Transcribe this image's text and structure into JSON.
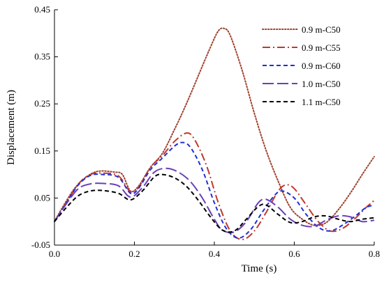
{
  "chart_data": {
    "type": "line",
    "xlabel": "Time (s)",
    "ylabel": "Displacement (m)",
    "xlim": [
      0,
      0.8
    ],
    "ylim": [
      -0.05,
      0.45
    ],
    "xticks": [
      "0.0",
      "0.2",
      "0.4",
      "0.6",
      "0.8"
    ],
    "yticks": [
      "-0.05",
      "0.05",
      "0.15",
      "0.25",
      "0.35",
      "0.45"
    ],
    "grid": false,
    "legend_position": "top-right",
    "series": [
      {
        "name": "0.9 m-C50",
        "color": "#a0412d",
        "dash": "dotted",
        "points": [
          [
            0,
            0
          ],
          [
            0.02,
            0.03
          ],
          [
            0.05,
            0.07
          ],
          [
            0.08,
            0.095
          ],
          [
            0.11,
            0.107
          ],
          [
            0.15,
            0.105
          ],
          [
            0.17,
            0.1
          ],
          [
            0.19,
            0.065
          ],
          [
            0.21,
            0.075
          ],
          [
            0.24,
            0.115
          ],
          [
            0.27,
            0.145
          ],
          [
            0.3,
            0.195
          ],
          [
            0.33,
            0.25
          ],
          [
            0.36,
            0.31
          ],
          [
            0.39,
            0.37
          ],
          [
            0.41,
            0.405
          ],
          [
            0.425,
            0.41
          ],
          [
            0.44,
            0.395
          ],
          [
            0.47,
            0.32
          ],
          [
            0.5,
            0.23
          ],
          [
            0.53,
            0.15
          ],
          [
            0.56,
            0.085
          ],
          [
            0.59,
            0.03
          ],
          [
            0.62,
            0.005
          ],
          [
            0.65,
            -0.008
          ],
          [
            0.68,
            -0.002
          ],
          [
            0.71,
            0.025
          ],
          [
            0.74,
            0.06
          ],
          [
            0.77,
            0.1
          ],
          [
            0.8,
            0.138
          ]
        ]
      },
      {
        "name": "0.9 m-C55",
        "color": "#c0392b",
        "dash": "dashdot",
        "points": [
          [
            0,
            0
          ],
          [
            0.03,
            0.04
          ],
          [
            0.06,
            0.08
          ],
          [
            0.09,
            0.1
          ],
          [
            0.12,
            0.103
          ],
          [
            0.16,
            0.097
          ],
          [
            0.19,
            0.063
          ],
          [
            0.21,
            0.072
          ],
          [
            0.24,
            0.115
          ],
          [
            0.27,
            0.14
          ],
          [
            0.3,
            0.17
          ],
          [
            0.33,
            0.188
          ],
          [
            0.35,
            0.175
          ],
          [
            0.38,
            0.12
          ],
          [
            0.41,
            0.04
          ],
          [
            0.44,
            -0.02
          ],
          [
            0.47,
            -0.038
          ],
          [
            0.5,
            -0.02
          ],
          [
            0.53,
            0.02
          ],
          [
            0.56,
            0.065
          ],
          [
            0.58,
            0.078
          ],
          [
            0.6,
            0.07
          ],
          [
            0.63,
            0.035
          ],
          [
            0.66,
            0.0
          ],
          [
            0.69,
            -0.02
          ],
          [
            0.72,
            -0.015
          ],
          [
            0.75,
            0.005
          ],
          [
            0.78,
            0.03
          ],
          [
            0.8,
            0.045
          ]
        ]
      },
      {
        "name": "0.9 m-C60",
        "color": "#1f2fd6",
        "dash": "dashed",
        "points": [
          [
            0,
            0
          ],
          [
            0.03,
            0.04
          ],
          [
            0.06,
            0.078
          ],
          [
            0.09,
            0.098
          ],
          [
            0.12,
            0.1
          ],
          [
            0.16,
            0.094
          ],
          [
            0.19,
            0.06
          ],
          [
            0.21,
            0.07
          ],
          [
            0.24,
            0.11
          ],
          [
            0.27,
            0.135
          ],
          [
            0.3,
            0.16
          ],
          [
            0.32,
            0.168
          ],
          [
            0.34,
            0.158
          ],
          [
            0.37,
            0.11
          ],
          [
            0.4,
            0.04
          ],
          [
            0.43,
            -0.015
          ],
          [
            0.46,
            -0.035
          ],
          [
            0.49,
            -0.018
          ],
          [
            0.52,
            0.02
          ],
          [
            0.55,
            0.055
          ],
          [
            0.57,
            0.065
          ],
          [
            0.6,
            0.05
          ],
          [
            0.63,
            0.015
          ],
          [
            0.66,
            -0.012
          ],
          [
            0.69,
            -0.02
          ],
          [
            0.72,
            -0.008
          ],
          [
            0.75,
            0.01
          ],
          [
            0.78,
            0.03
          ],
          [
            0.8,
            0.035
          ]
        ]
      },
      {
        "name": "1.0 m-C50",
        "color": "#6a3fb5",
        "dash": "longdash",
        "points": [
          [
            0,
            0
          ],
          [
            0.03,
            0.038
          ],
          [
            0.06,
            0.07
          ],
          [
            0.09,
            0.08
          ],
          [
            0.12,
            0.081
          ],
          [
            0.16,
            0.076
          ],
          [
            0.19,
            0.052
          ],
          [
            0.22,
            0.072
          ],
          [
            0.25,
            0.105
          ],
          [
            0.28,
            0.113
          ],
          [
            0.31,
            0.105
          ],
          [
            0.34,
            0.085
          ],
          [
            0.37,
            0.05
          ],
          [
            0.4,
            0.005
          ],
          [
            0.42,
            -0.018
          ],
          [
            0.45,
            -0.022
          ],
          [
            0.48,
            0.0
          ],
          [
            0.51,
            0.04
          ],
          [
            0.53,
            0.047
          ],
          [
            0.56,
            0.03
          ],
          [
            0.59,
            0.005
          ],
          [
            0.62,
            -0.008
          ],
          [
            0.65,
            -0.01
          ],
          [
            0.68,
            0.003
          ],
          [
            0.71,
            0.012
          ],
          [
            0.74,
            0.01
          ],
          [
            0.77,
            0.0
          ],
          [
            0.8,
            0.003
          ]
        ]
      },
      {
        "name": "1.1 m-C50",
        "color": "#000000",
        "dash": "dashed",
        "points": [
          [
            0,
            0
          ],
          [
            0.03,
            0.03
          ],
          [
            0.06,
            0.055
          ],
          [
            0.09,
            0.065
          ],
          [
            0.12,
            0.066
          ],
          [
            0.16,
            0.06
          ],
          [
            0.19,
            0.046
          ],
          [
            0.22,
            0.065
          ],
          [
            0.25,
            0.095
          ],
          [
            0.27,
            0.1
          ],
          [
            0.3,
            0.093
          ],
          [
            0.33,
            0.075
          ],
          [
            0.36,
            0.045
          ],
          [
            0.39,
            0.01
          ],
          [
            0.42,
            -0.018
          ],
          [
            0.45,
            -0.02
          ],
          [
            0.48,
            0.005
          ],
          [
            0.51,
            0.032
          ],
          [
            0.53,
            0.035
          ],
          [
            0.56,
            0.015
          ],
          [
            0.59,
            -0.002
          ],
          [
            0.62,
            0.0
          ],
          [
            0.65,
            0.01
          ],
          [
            0.68,
            0.012
          ],
          [
            0.71,
            0.005
          ],
          [
            0.74,
            0.0
          ],
          [
            0.77,
            0.005
          ],
          [
            0.8,
            0.008
          ]
        ]
      }
    ]
  }
}
